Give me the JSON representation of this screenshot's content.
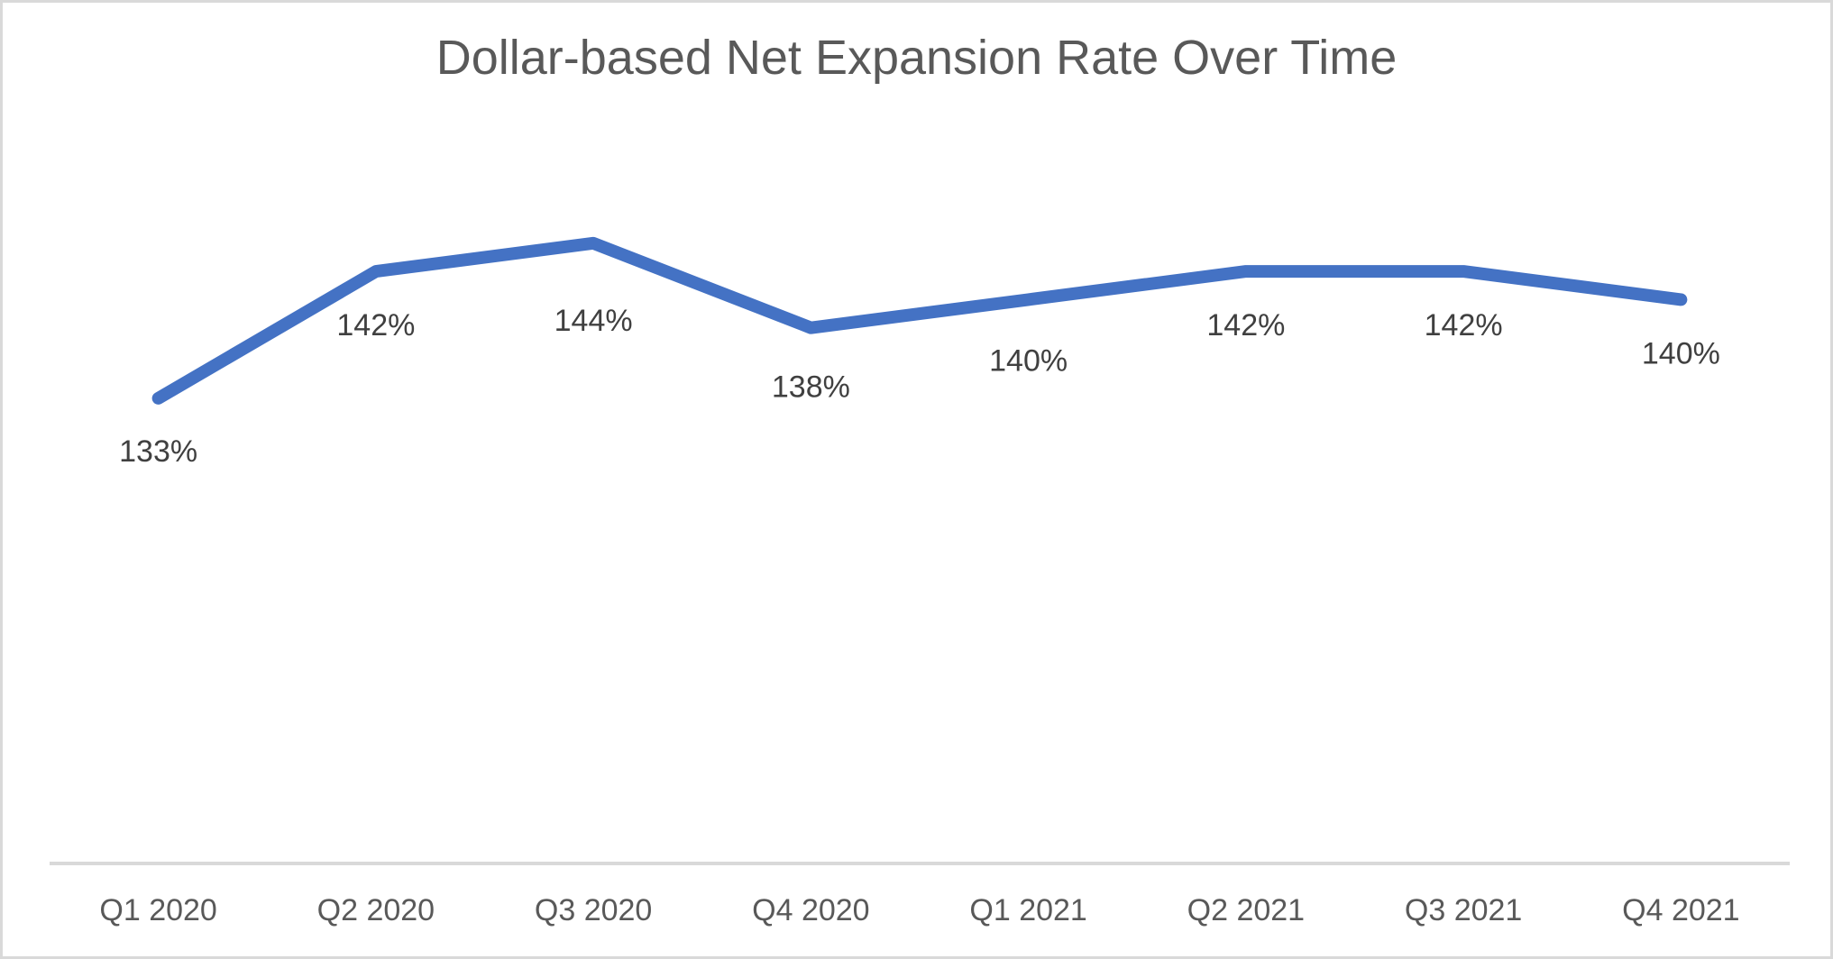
{
  "window": {
    "background_color": "#ffffff",
    "border_color": "#d9d9d9"
  },
  "chart_data": {
    "type": "line",
    "title": "Dollar-based Net Expansion Rate Over Time",
    "categories": [
      "Q1 2020",
      "Q2 2020",
      "Q3 2020",
      "Q4 2020",
      "Q1 2021",
      "Q2 2021",
      "Q3 2021",
      "Q4 2021"
    ],
    "values": [
      133,
      142,
      144,
      138,
      140,
      142,
      142,
      140
    ],
    "unit": "%",
    "data_labels": [
      "133%",
      "142%",
      "144%",
      "138%",
      "140%",
      "142%",
      "142%",
      "140%"
    ],
    "xlabel": "",
    "ylabel": "",
    "ylim": [
      100,
      150
    ],
    "grid": false,
    "legend_position": "none",
    "data_labels_position": "below",
    "series_color": "#4472C4",
    "axis_line_color": "#D9D9D9",
    "title_color": "#595959",
    "data_label_color": "#404040",
    "axis_label_color": "#595959",
    "layout_hints": {
      "label_dy": [
        59,
        60,
        86,
        66,
        68,
        60,
        60,
        60
      ]
    }
  }
}
